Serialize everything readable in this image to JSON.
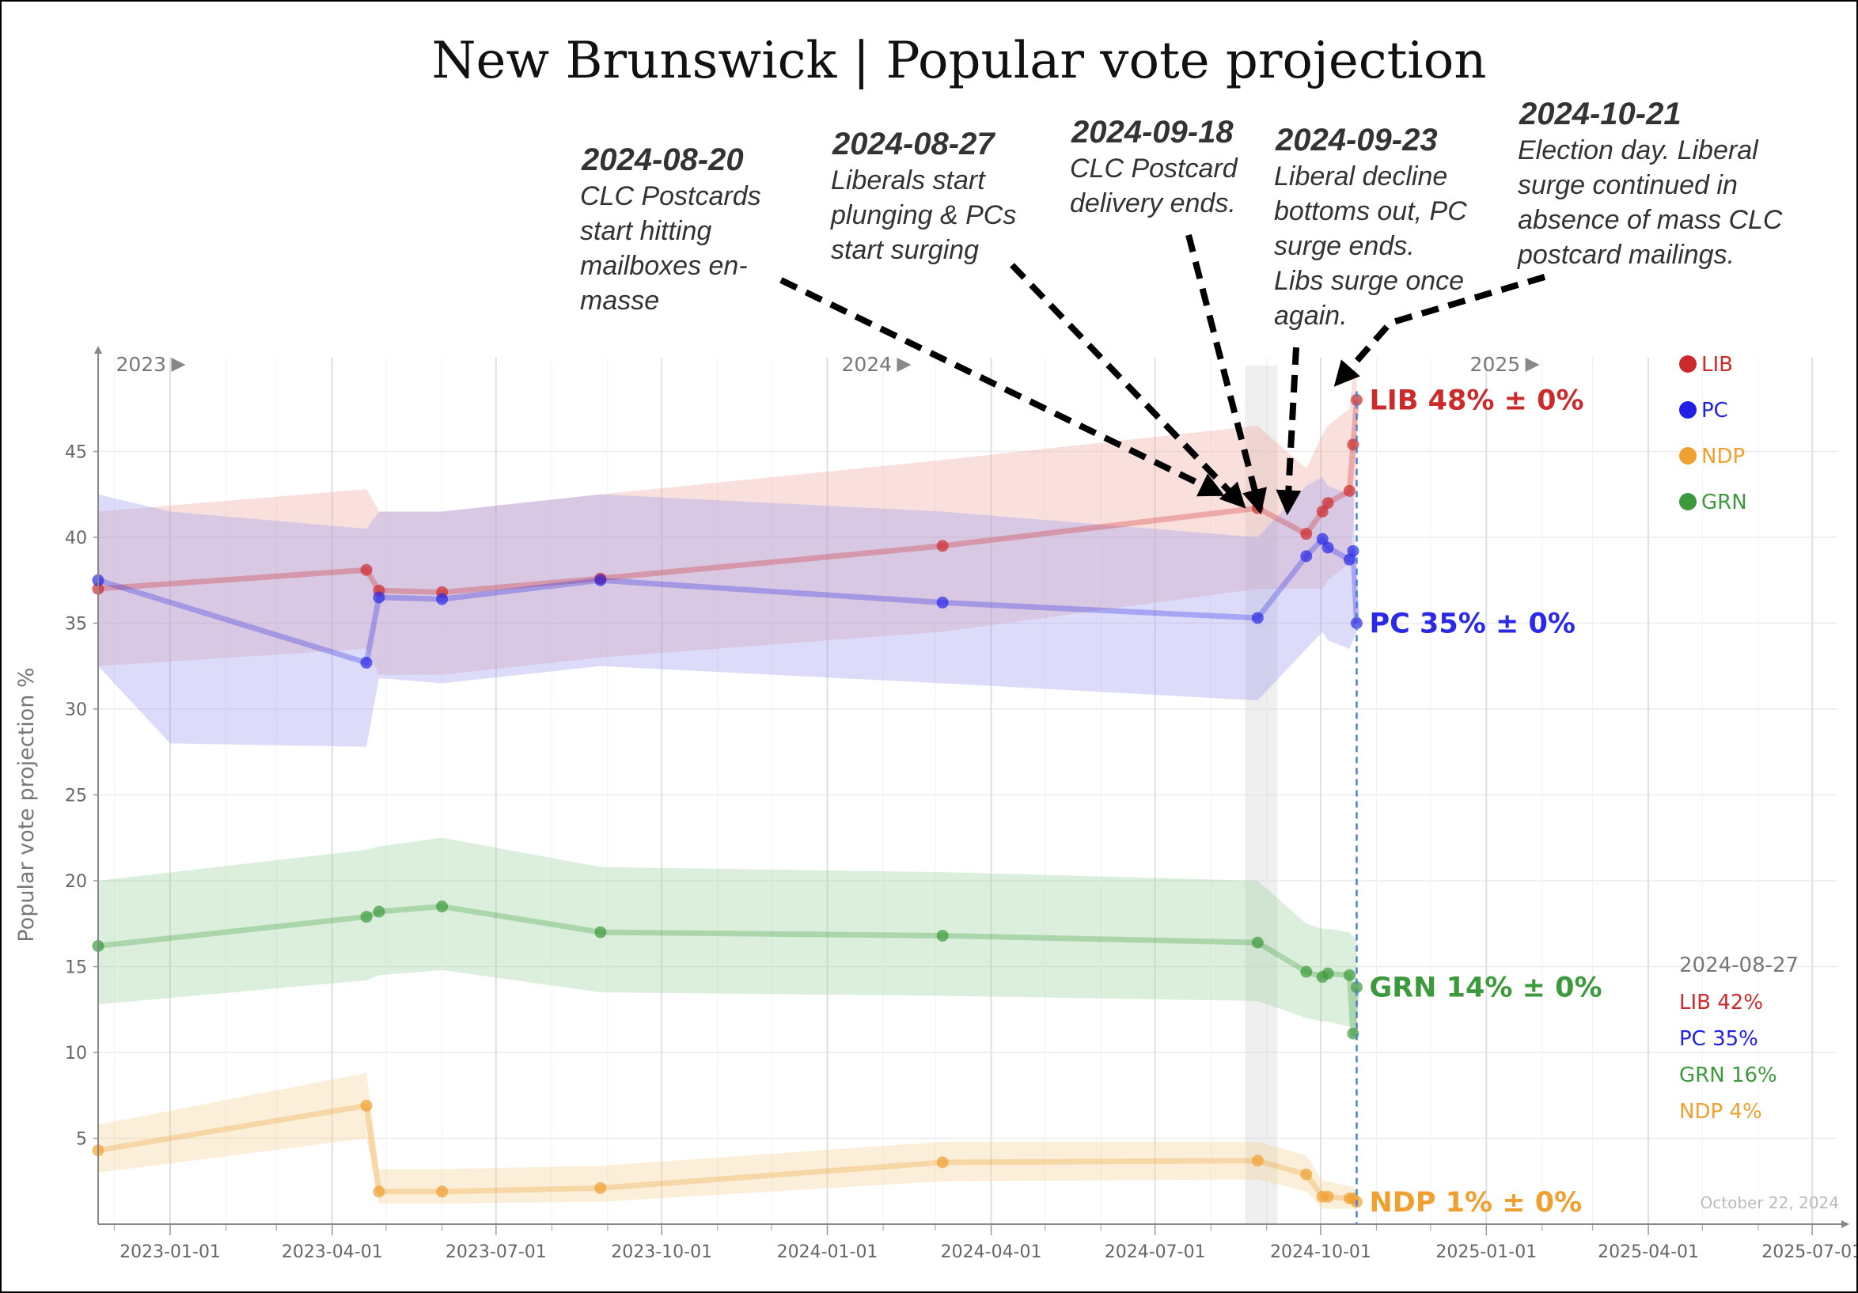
{
  "chart_data": {
    "type": "line",
    "title": "New Brunswick | Popular vote projection",
    "ylabel": "Popular vote projection %",
    "xlabel": "",
    "ylim": [
      0,
      50
    ],
    "yticks": [
      5,
      10,
      15,
      20,
      25,
      30,
      35,
      40,
      45
    ],
    "xlim": [
      "2022-11-22",
      "2025-07-15"
    ],
    "xticks": [
      "2023-01-01",
      "2023-04-01",
      "2023-07-01",
      "2023-10-01",
      "2024-01-01",
      "2024-04-01",
      "2024-07-01",
      "2024-10-01",
      "2025-01-01",
      "2025-04-01",
      "2025-07-01"
    ],
    "year_markers": [
      {
        "date": "2022-12-01",
        "label": "2023"
      },
      {
        "date": "2024-01-08",
        "label": "2024"
      },
      {
        "date": "2024-12-22",
        "label": "2025"
      }
    ],
    "grid": true,
    "shaded_period": [
      "2024-08-20",
      "2024-09-07"
    ],
    "election_day": "2024-10-21",
    "date_stamp": "October 22, 2024",
    "series": [
      {
        "name": "LIB",
        "color": "#cc2b2b",
        "band_color": "#f2a59b",
        "end_label": "LIB 48% ± 0%",
        "points": [
          [
            "2022-11-22",
            37.0
          ],
          [
            "2023-04-20",
            38.1
          ],
          [
            "2023-04-27",
            36.9
          ],
          [
            "2023-06-01",
            36.8
          ],
          [
            "2023-08-28",
            37.6
          ],
          [
            "2024-03-05",
            39.5
          ],
          [
            "2024-08-27",
            41.7
          ],
          [
            "2024-09-23",
            40.2
          ],
          [
            "2024-10-02",
            41.5
          ],
          [
            "2024-10-05",
            42.0
          ],
          [
            "2024-10-17",
            42.7
          ],
          [
            "2024-10-19",
            45.4
          ],
          [
            "2024-10-21",
            48.0
          ]
        ],
        "band": [
          [
            "2022-11-22",
            32.5,
            41.5
          ],
          [
            "2023-04-20",
            33.5,
            42.8
          ],
          [
            "2023-04-27",
            32.0,
            41.5
          ],
          [
            "2023-06-01",
            32.0,
            41.5
          ],
          [
            "2023-08-28",
            33.0,
            42.5
          ],
          [
            "2024-03-05",
            34.5,
            44.5
          ],
          [
            "2024-08-27",
            37.0,
            46.5
          ],
          [
            "2024-09-23",
            37.0,
            44.0
          ],
          [
            "2024-10-02",
            37.0,
            46.0
          ],
          [
            "2024-10-05",
            37.5,
            46.5
          ],
          [
            "2024-10-17",
            38.5,
            47.5
          ],
          [
            "2024-10-19",
            40.5,
            49.5
          ],
          [
            "2024-10-21",
            44.0,
            50.0
          ]
        ]
      },
      {
        "name": "PC",
        "color": "#2a2ae6",
        "band_color": "#9b9bf2",
        "end_label": "PC 35% ± 0%",
        "points": [
          [
            "2022-11-22",
            37.5
          ],
          [
            "2023-04-20",
            32.7
          ],
          [
            "2023-04-27",
            36.5
          ],
          [
            "2023-06-01",
            36.4
          ],
          [
            "2023-08-28",
            37.5
          ],
          [
            "2024-03-05",
            36.2
          ],
          [
            "2024-08-27",
            35.3
          ],
          [
            "2024-09-23",
            38.9
          ],
          [
            "2024-10-02",
            39.9
          ],
          [
            "2024-10-05",
            39.4
          ],
          [
            "2024-10-17",
            38.7
          ],
          [
            "2024-10-19",
            39.2
          ],
          [
            "2024-10-21",
            35.0
          ]
        ],
        "band": [
          [
            "2022-11-22",
            32.5,
            42.5
          ],
          [
            "2023-01-01",
            28.0,
            41.5
          ],
          [
            "2023-04-20",
            27.8,
            40.5
          ],
          [
            "2023-04-27",
            31.8,
            41.5
          ],
          [
            "2023-06-01",
            31.5,
            41.5
          ],
          [
            "2023-08-28",
            32.5,
            42.5
          ],
          [
            "2024-03-05",
            31.5,
            41.5
          ],
          [
            "2024-08-27",
            30.5,
            40.0
          ],
          [
            "2024-09-23",
            33.5,
            43.0
          ],
          [
            "2024-10-02",
            34.5,
            43.5
          ],
          [
            "2024-10-05",
            34.0,
            43.0
          ],
          [
            "2024-10-17",
            33.5,
            42.5
          ],
          [
            "2024-10-19",
            34.0,
            43.0
          ],
          [
            "2024-10-21",
            34.5,
            36.0
          ]
        ]
      },
      {
        "name": "GRN",
        "color": "#3c9a3c",
        "band_color": "#9bd09b",
        "end_label": "GRN 14% ± 0%",
        "points": [
          [
            "2022-11-22",
            16.2
          ],
          [
            "2023-04-20",
            17.9
          ],
          [
            "2023-04-27",
            18.2
          ],
          [
            "2023-06-01",
            18.5
          ],
          [
            "2023-08-28",
            17.0
          ],
          [
            "2024-03-05",
            16.8
          ],
          [
            "2024-08-27",
            16.4
          ],
          [
            "2024-09-23",
            14.7
          ],
          [
            "2024-10-02",
            14.4
          ],
          [
            "2024-10-05",
            14.6
          ],
          [
            "2024-10-17",
            14.5
          ],
          [
            "2024-10-19",
            11.1
          ],
          [
            "2024-10-21",
            13.8
          ]
        ],
        "band": [
          [
            "2022-11-22",
            12.8,
            20.0
          ],
          [
            "2023-04-20",
            14.2,
            21.8
          ],
          [
            "2023-04-27",
            14.5,
            22.0
          ],
          [
            "2023-06-01",
            14.8,
            22.5
          ],
          [
            "2023-08-28",
            13.5,
            20.8
          ],
          [
            "2024-03-05",
            13.3,
            20.5
          ],
          [
            "2024-08-27",
            13.0,
            20.0
          ],
          [
            "2024-09-23",
            12.0,
            17.5
          ],
          [
            "2024-10-02",
            11.8,
            17.2
          ],
          [
            "2024-10-05",
            11.8,
            17.2
          ],
          [
            "2024-10-17",
            11.5,
            17.0
          ],
          [
            "2024-10-19",
            11.5,
            16.8
          ],
          [
            "2024-10-21",
            11.5,
            16.5
          ]
        ]
      },
      {
        "name": "NDP",
        "color": "#f0a030",
        "band_color": "#f7d196",
        "end_label": "NDP 1% ± 0%",
        "points": [
          [
            "2022-11-22",
            4.3
          ],
          [
            "2023-04-20",
            6.9
          ],
          [
            "2023-04-27",
            1.9
          ],
          [
            "2023-06-01",
            1.9
          ],
          [
            "2023-08-28",
            2.1
          ],
          [
            "2024-03-05",
            3.6
          ],
          [
            "2024-08-27",
            3.7
          ],
          [
            "2024-09-23",
            2.9
          ],
          [
            "2024-10-02",
            1.6
          ],
          [
            "2024-10-05",
            1.6
          ],
          [
            "2024-10-17",
            1.5
          ],
          [
            "2024-10-19",
            1.5
          ],
          [
            "2024-10-21",
            1.3
          ]
        ],
        "band": [
          [
            "2022-11-22",
            3.0,
            5.8
          ],
          [
            "2023-04-20",
            5.0,
            8.8
          ],
          [
            "2023-04-27",
            1.2,
            3.2
          ],
          [
            "2023-06-01",
            1.2,
            3.2
          ],
          [
            "2023-08-28",
            1.3,
            3.4
          ],
          [
            "2024-03-05",
            2.5,
            4.8
          ],
          [
            "2024-08-27",
            2.6,
            4.8
          ],
          [
            "2024-09-23",
            1.9,
            4.0
          ],
          [
            "2024-10-02",
            0.9,
            2.5
          ],
          [
            "2024-10-05",
            0.9,
            2.5
          ],
          [
            "2024-10-17",
            0.9,
            2.2
          ],
          [
            "2024-10-19",
            0.9,
            2.2
          ],
          [
            "2024-10-21",
            0.7,
            2.0
          ]
        ]
      }
    ],
    "legend": {
      "placement": "top-right",
      "items": [
        {
          "label": "LIB",
          "color": "#cc2b2b"
        },
        {
          "label": "PC",
          "color": "#1f1fe6"
        },
        {
          "label": "NDP",
          "color": "#f0a030"
        },
        {
          "label": "GRN",
          "color": "#3c9a3c"
        }
      ]
    },
    "snapshot": {
      "date": "2024-08-27",
      "items": [
        {
          "label": "LIB 42%",
          "color": "#cc2b2b"
        },
        {
          "label": "PC 35%",
          "color": "#1f1fe6"
        },
        {
          "label": "GRN 16%",
          "color": "#3c9a3c"
        },
        {
          "label": "NDP 4%",
          "color": "#f0a030"
        }
      ]
    },
    "annotations": [
      {
        "date": "2024-08-20",
        "lines": [
          "CLC Postcards",
          "start hitting",
          "mailboxes en-",
          "masse"
        ],
        "target": [
          "2024-08-27",
          41.7
        ]
      },
      {
        "date": "2024-08-27",
        "lines": [
          "Liberals start",
          "plunging & PCs",
          "start surging"
        ],
        "target": [
          "2024-09-20",
          40.8
        ]
      },
      {
        "date": "2024-09-18",
        "lines": [
          "CLC Postcard",
          "delivery ends."
        ],
        "target": [
          "2024-09-13",
          40.5
        ]
      },
      {
        "date": "2024-09-23",
        "lines": [
          "Liberal decline",
          "bottoms out, PC",
          "surge ends.",
          "Libs surge once",
          "again."
        ],
        "target": [
          "2024-09-27",
          40.6
        ]
      },
      {
        "date": "2024-10-21",
        "lines": [
          "Election day. Liberal",
          "surge continued in",
          "absence of mass CLC",
          "postcard mailings."
        ],
        "target": [
          "2024-10-21",
          49.2
        ]
      }
    ]
  }
}
